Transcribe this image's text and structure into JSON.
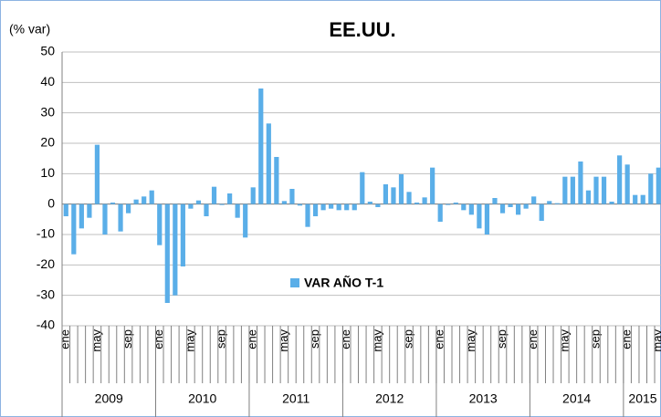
{
  "chart_data": {
    "type": "bar",
    "title": "EE.UU.",
    "y_label": "(% var)",
    "series": [
      {
        "name": "VAR AÑO T-1",
        "color": "#5aaee8",
        "values": [
          -4,
          -16.5,
          -8,
          -4.5,
          19.5,
          -10,
          0.5,
          -9,
          -3,
          1.5,
          2.5,
          4.5,
          -13.5,
          -32.5,
          -30,
          -20.5,
          -1.5,
          1.2,
          -4,
          5.7,
          -0.3,
          3.5,
          -4.5,
          -11,
          5.5,
          38,
          26.5,
          15.5,
          1,
          5,
          -0.5,
          -7.5,
          -4,
          -2,
          -1.5,
          -2,
          -2,
          -2,
          10.5,
          0.8,
          -1,
          6.5,
          5.5,
          9.8,
          4,
          0.5,
          2.2,
          12,
          -5.8,
          -0.3,
          0.5,
          -2,
          -3.5,
          -8,
          -10,
          2,
          -3,
          -1,
          -3.5,
          -1.5,
          2.5,
          -5.5,
          1,
          0.3,
          9,
          9,
          14,
          4.5,
          9,
          9,
          0.8,
          16,
          13,
          3,
          3,
          10,
          12
        ]
      }
    ],
    "categories": [
      "ene",
      null,
      null,
      null,
      "may",
      null,
      null,
      null,
      "sep",
      null,
      null,
      null,
      "ene",
      null,
      null,
      null,
      "may",
      null,
      null,
      null,
      "sep",
      null,
      null,
      null,
      "ene",
      null,
      null,
      null,
      "may",
      null,
      null,
      null,
      "sep",
      null,
      null,
      null,
      "ene",
      null,
      null,
      null,
      "may",
      null,
      null,
      null,
      "sep",
      null,
      null,
      null,
      "ene",
      null,
      null,
      null,
      "may",
      null,
      null,
      null,
      "sep",
      null,
      null,
      null,
      "ene",
      null,
      null,
      null,
      "may",
      null,
      null,
      null,
      "sep",
      null,
      null,
      null,
      "ene",
      null,
      null,
      null,
      "may"
    ],
    "years": [
      "2009",
      "2010",
      "2011",
      "2012",
      "2013",
      "2014",
      "2015"
    ],
    "ylim": [
      -40,
      50
    ],
    "yticks": [
      -40,
      -30,
      -20,
      -10,
      0,
      10,
      20,
      30,
      40,
      50
    ],
    "grid": true
  }
}
